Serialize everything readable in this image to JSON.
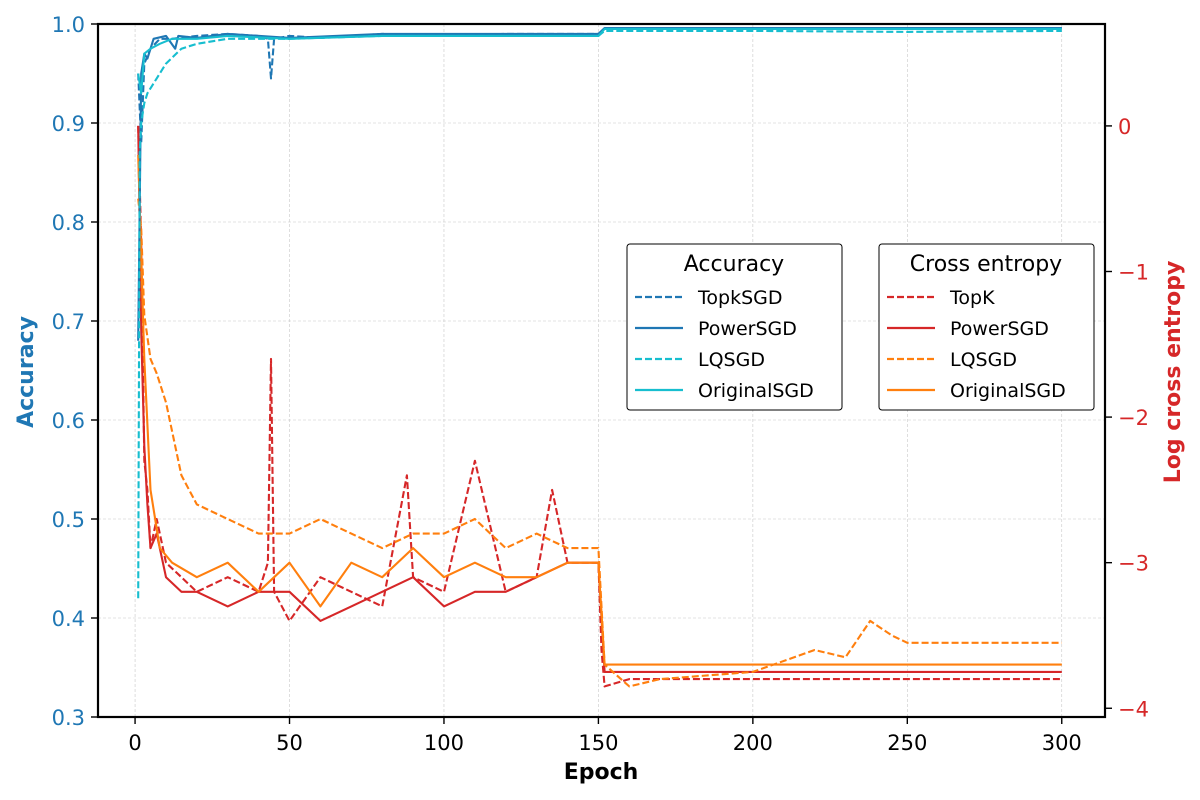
{
  "chart_data": {
    "type": "line",
    "xlabel": "Epoch",
    "ylabel_left": "Accuracy",
    "ylabel_right": "Log cross entropy",
    "xlim": [
      -12,
      314
    ],
    "ylim_left": [
      0.3,
      1.0
    ],
    "ylim_right": [
      -4.06,
      0.7
    ],
    "x_ticks": [
      0,
      50,
      100,
      150,
      200,
      250,
      300
    ],
    "y_ticks_left": [
      "0.3",
      "0.4",
      "0.5",
      "0.6",
      "0.7",
      "0.8",
      "0.9",
      "1.0"
    ],
    "y_ticks_right": [
      "0",
      "−1",
      "−2",
      "−3",
      "−4"
    ],
    "grid": true,
    "legend_accuracy": {
      "title": "Accuracy",
      "placement": "center-right",
      "entries": [
        {
          "label": "TopkSGD",
          "color": "#1f77b4",
          "style": "dashed"
        },
        {
          "label": "PowerSGD",
          "color": "#1f77b4",
          "style": "solid"
        },
        {
          "label": "LQSGD",
          "color": "#17becf",
          "style": "dashed"
        },
        {
          "label": "OriginalSGD",
          "color": "#17becf",
          "style": "solid"
        }
      ]
    },
    "legend_loss": {
      "title": "Cross entropy",
      "placement": "center-right",
      "entries": [
        {
          "label": "TopK",
          "color": "#d62728",
          "style": "dashed"
        },
        {
          "label": "PowerSGD",
          "color": "#d62728",
          "style": "solid"
        },
        {
          "label": "LQSGD",
          "color": "#ff7f0e",
          "style": "dashed"
        },
        {
          "label": "OriginalSGD",
          "color": "#ff7f0e",
          "style": "solid"
        }
      ]
    },
    "accuracy_series": [
      {
        "name": "TopkSGD",
        "color": "#1f77b4",
        "style": "dashed",
        "x": [
          1,
          2,
          3,
          5,
          8,
          12,
          20,
          30,
          40,
          43,
          44,
          45,
          50,
          60,
          80,
          100,
          120,
          140,
          150,
          152,
          200,
          250,
          300
        ],
        "y": [
          0.95,
          0.88,
          0.96,
          0.975,
          0.985,
          0.985,
          0.988,
          0.99,
          0.988,
          0.985,
          0.945,
          0.985,
          0.988,
          0.986,
          0.99,
          0.988,
          0.99,
          0.99,
          0.99,
          0.995,
          0.996,
          0.996,
          0.996
        ]
      },
      {
        "name": "PowerSGD",
        "color": "#1f77b4",
        "style": "solid",
        "x": [
          1,
          2,
          3,
          4,
          6,
          10,
          13,
          14,
          20,
          30,
          50,
          80,
          100,
          150,
          152,
          200,
          250,
          300
        ],
        "y": [
          0.68,
          0.95,
          0.97,
          0.965,
          0.985,
          0.988,
          0.975,
          0.988,
          0.986,
          0.99,
          0.986,
          0.99,
          0.99,
          0.99,
          0.996,
          0.996,
          0.996,
          0.996
        ]
      },
      {
        "name": "LQSGD",
        "color": "#17becf",
        "style": "dashed",
        "x": [
          1,
          1.5,
          2,
          3,
          4,
          5,
          7,
          10,
          15,
          20,
          30,
          50,
          80,
          100,
          150,
          152,
          200,
          250,
          300
        ],
        "y": [
          0.42,
          0.87,
          0.9,
          0.92,
          0.93,
          0.935,
          0.945,
          0.96,
          0.975,
          0.98,
          0.985,
          0.985,
          0.988,
          0.988,
          0.988,
          0.993,
          0.993,
          0.992,
          0.993
        ]
      },
      {
        "name": "OriginalSGD",
        "color": "#17becf",
        "style": "solid",
        "x": [
          1,
          2,
          3,
          5,
          8,
          12,
          20,
          30,
          50,
          80,
          100,
          150,
          152,
          200,
          250,
          300
        ],
        "y": [
          0.95,
          0.93,
          0.97,
          0.975,
          0.98,
          0.985,
          0.985,
          0.988,
          0.985,
          0.988,
          0.988,
          0.988,
          0.995,
          0.995,
          0.995,
          0.995
        ]
      }
    ],
    "loss_series": [
      {
        "name": "TopK",
        "color": "#d62728",
        "style": "dashed",
        "x": [
          1,
          2,
          3,
          4,
          5,
          7,
          10,
          15,
          20,
          30,
          40,
          43,
          44,
          45,
          50,
          60,
          70,
          80,
          88,
          90,
          100,
          110,
          120,
          130,
          135,
          140,
          150,
          151,
          152,
          160,
          200,
          250,
          300
        ],
        "y": [
          0.0,
          -0.8,
          -2.3,
          -2.5,
          -2.9,
          -2.7,
          -3.0,
          -3.1,
          -3.2,
          -3.1,
          -3.2,
          -3.0,
          -1.6,
          -3.2,
          -3.4,
          -3.1,
          -3.2,
          -3.3,
          -2.4,
          -3.1,
          -3.2,
          -2.3,
          -3.2,
          -3.1,
          -2.5,
          -3.0,
          -3.0,
          -3.6,
          -3.85,
          -3.8,
          -3.8,
          -3.8,
          -3.8
        ]
      },
      {
        "name": "PowerSGD",
        "color": "#d62728",
        "style": "solid",
        "x": [
          1,
          2,
          3,
          4,
          5,
          7,
          10,
          15,
          20,
          30,
          40,
          50,
          60,
          70,
          80,
          90,
          100,
          110,
          120,
          130,
          140,
          150,
          152,
          160,
          200,
          250,
          300
        ],
        "y": [
          0.0,
          -1.4,
          -2.2,
          -2.6,
          -2.9,
          -2.8,
          -3.1,
          -3.2,
          -3.2,
          -3.3,
          -3.2,
          -3.2,
          -3.4,
          -3.3,
          -3.2,
          -3.1,
          -3.3,
          -3.2,
          -3.2,
          -3.1,
          -3.0,
          -3.0,
          -3.75,
          -3.75,
          -3.75,
          -3.75,
          -3.75
        ]
      },
      {
        "name": "LQSGD",
        "color": "#ff7f0e",
        "style": "dashed",
        "x": [
          1,
          2,
          3,
          5,
          7,
          10,
          15,
          20,
          30,
          40,
          50,
          60,
          70,
          80,
          90,
          100,
          110,
          120,
          130,
          140,
          150,
          152,
          160,
          170,
          200,
          220,
          230,
          238,
          245,
          250,
          270,
          300
        ],
        "y": [
          -0.5,
          -0.7,
          -1.3,
          -1.6,
          -1.7,
          -1.9,
          -2.4,
          -2.6,
          -2.7,
          -2.8,
          -2.8,
          -2.7,
          -2.8,
          -2.9,
          -2.8,
          -2.8,
          -2.7,
          -2.9,
          -2.8,
          -2.9,
          -2.9,
          -3.7,
          -3.85,
          -3.8,
          -3.75,
          -3.6,
          -3.65,
          -3.4,
          -3.5,
          -3.55,
          -3.55,
          -3.55
        ]
      },
      {
        "name": "OriginalSGD",
        "color": "#ff7f0e",
        "style": "solid",
        "x": [
          1,
          2,
          3,
          5,
          8,
          12,
          20,
          30,
          40,
          50,
          60,
          70,
          80,
          90,
          100,
          110,
          120,
          130,
          140,
          150,
          152,
          200,
          250,
          300
        ],
        "y": [
          -0.2,
          -0.9,
          -1.6,
          -2.5,
          -2.9,
          -3.0,
          -3.1,
          -3.0,
          -3.2,
          -3.0,
          -3.3,
          -3.0,
          -3.1,
          -2.9,
          -3.1,
          -3.0,
          -3.1,
          -3.1,
          -3.0,
          -3.0,
          -3.7,
          -3.7,
          -3.7,
          -3.7
        ]
      }
    ]
  },
  "colors": {
    "accuracy_axis": "#1f77b4",
    "loss_axis": "#d62728"
  }
}
